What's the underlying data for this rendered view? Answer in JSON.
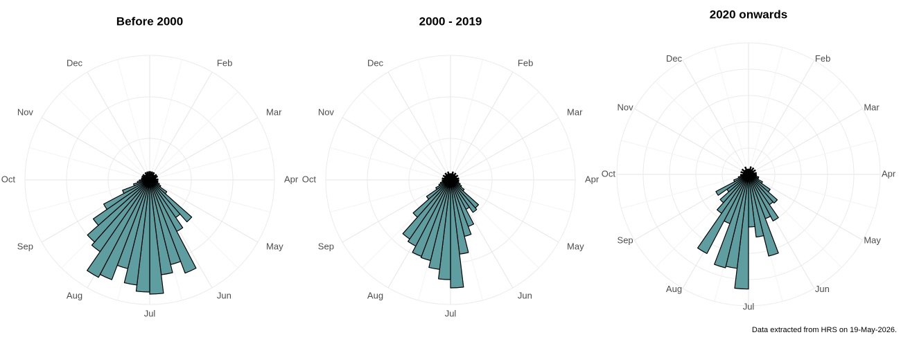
{
  "chart_data": [
    {
      "type": "polar-histogram",
      "title": "Before 2000",
      "color": "#5f9ea0",
      "bins": [
        0,
        1,
        2,
        3,
        4,
        5,
        6,
        7,
        8,
        9,
        10,
        11,
        12,
        13,
        14,
        15,
        16,
        17,
        18,
        19,
        20,
        21,
        22,
        23,
        24,
        25,
        26,
        27,
        28,
        29,
        30,
        31,
        32,
        33,
        34,
        35,
        36,
        37,
        38,
        39,
        40,
        41,
        42,
        43,
        44,
        45,
        46,
        47,
        48,
        49,
        50,
        51,
        52
      ],
      "values": [
        2,
        1.5,
        2,
        1.5,
        2,
        1.5,
        1.5,
        2,
        1.5,
        2,
        1.5,
        1.5,
        2,
        1.5,
        2,
        2,
        2.5,
        3,
        5,
        13.5,
        11,
        14,
        24,
        21,
        23,
        27.5,
        27,
        25.5,
        22,
        25.7,
        26.5,
        21,
        20,
        16.5,
        12.5,
        7,
        4,
        3,
        2.5,
        2,
        2,
        1.5,
        2,
        1.5,
        2,
        1.5,
        1.5,
        2,
        1.5,
        2,
        1.5,
        2
      ],
      "xlim": [
        0,
        52
      ],
      "xticks": [
        {
          "value": 4.33,
          "label": "Feb"
        },
        {
          "value": 8.67,
          "label": "Mar"
        },
        {
          "value": 13,
          "label": "Apr"
        },
        {
          "value": 17.33,
          "label": "May"
        },
        {
          "value": 21.67,
          "label": "Jun"
        },
        {
          "value": 26,
          "label": "Jul"
        },
        {
          "value": 30.33,
          "label": "Aug"
        },
        {
          "value": 34.67,
          "label": "Sep"
        },
        {
          "value": 39,
          "label": "Oct"
        },
        {
          "value": 43.33,
          "label": "Nov"
        },
        {
          "value": 47.67,
          "label": "Dec"
        }
      ],
      "ylim": [
        0,
        32
      ],
      "yticks": [
        10,
        20,
        30
      ]
    },
    {
      "type": "polar-histogram",
      "title": "2000 - 2019",
      "color": "#5f9ea0",
      "bins": [
        0,
        1,
        2,
        3,
        4,
        5,
        6,
        7,
        8,
        9,
        10,
        11,
        12,
        13,
        14,
        15,
        16,
        17,
        18,
        19,
        20,
        21,
        22,
        23,
        24,
        25,
        26,
        27,
        28,
        29,
        30,
        31,
        32,
        33,
        34,
        35,
        36,
        37,
        38,
        39,
        40,
        41,
        42,
        43,
        44,
        45,
        46,
        47,
        48,
        49,
        50,
        51,
        52
      ],
      "values": [
        1.5,
        1.5,
        2,
        1.5,
        1.5,
        2,
        1.5,
        1.5,
        2,
        1.5,
        1.5,
        2,
        1.5,
        2,
        2,
        2,
        2.5,
        3,
        4,
        9,
        9.5,
        8,
        12,
        14,
        18,
        26,
        24,
        21.7,
        20,
        19.7,
        18,
        17.3,
        12,
        7,
        4,
        3,
        2.5,
        2,
        2,
        1.5,
        2,
        1.5,
        1.5,
        2,
        1.5,
        1.5,
        2,
        1.5,
        1.5,
        2,
        1.5,
        1.5
      ],
      "xlim": [
        0,
        52
      ],
      "xticks": [
        {
          "value": 4.33,
          "label": "Feb"
        },
        {
          "value": 8.67,
          "label": "Mar"
        },
        {
          "value": 13,
          "label": "Apr"
        },
        {
          "value": 17.33,
          "label": "May"
        },
        {
          "value": 21.67,
          "label": "Jun"
        },
        {
          "value": 26,
          "label": "Jul"
        },
        {
          "value": 30.33,
          "label": "Aug"
        },
        {
          "value": 34.67,
          "label": "Sep"
        },
        {
          "value": 39,
          "label": "Oct"
        },
        {
          "value": 43.33,
          "label": "Nov"
        },
        {
          "value": 47.67,
          "label": "Dec"
        }
      ],
      "ylim": [
        0,
        32
      ],
      "yticks": [
        10,
        20,
        30
      ]
    },
    {
      "type": "polar-histogram",
      "title": "2020 onwards",
      "color": "#5f9ea0",
      "bins": [
        0,
        1,
        2,
        3,
        4,
        5,
        6,
        7,
        8,
        9,
        10,
        11,
        12,
        13,
        14,
        15,
        16,
        17,
        18,
        19,
        20,
        21,
        22,
        23,
        24,
        25,
        26,
        27,
        28,
        29,
        30,
        31,
        32,
        33,
        34,
        35,
        36,
        37,
        38,
        39,
        40,
        41,
        42,
        43,
        44,
        45,
        46,
        47,
        48,
        49,
        50,
        51,
        52
      ],
      "values": [
        1,
        1,
        1.5,
        1,
        1,
        1.5,
        1,
        1,
        1.5,
        1,
        1,
        1.5,
        1,
        1.5,
        1.5,
        2,
        2,
        3,
        5,
        7.3,
        7,
        10,
        9,
        16,
        12,
        10,
        21.8,
        18,
        18.3,
        10,
        17,
        9,
        7.2,
        5,
        7,
        3,
        2,
        1.5,
        1.5,
        1,
        1,
        1.5,
        1,
        1,
        1.5,
        1,
        1,
        1,
        1.5,
        1,
        1,
        1
      ],
      "xlim": [
        0,
        52
      ],
      "xticks": [
        {
          "value": 4.33,
          "label": "Feb"
        },
        {
          "value": 8.67,
          "label": "Mar"
        },
        {
          "value": 13,
          "label": "Apr"
        },
        {
          "value": 17.33,
          "label": "May"
        },
        {
          "value": 21.67,
          "label": "Jun"
        },
        {
          "value": 26,
          "label": "Jul"
        },
        {
          "value": 30.33,
          "label": "Aug"
        },
        {
          "value": 34.67,
          "label": "Sep"
        },
        {
          "value": 39,
          "label": "Oct"
        },
        {
          "value": 43.33,
          "label": "Nov"
        },
        {
          "value": 47.67,
          "label": "Dec"
        }
      ],
      "ylim": [
        0,
        25
      ],
      "yticks": [
        5,
        10,
        15,
        20,
        25
      ]
    }
  ],
  "caption": "Data extracted from HRS on 19-May-2026."
}
